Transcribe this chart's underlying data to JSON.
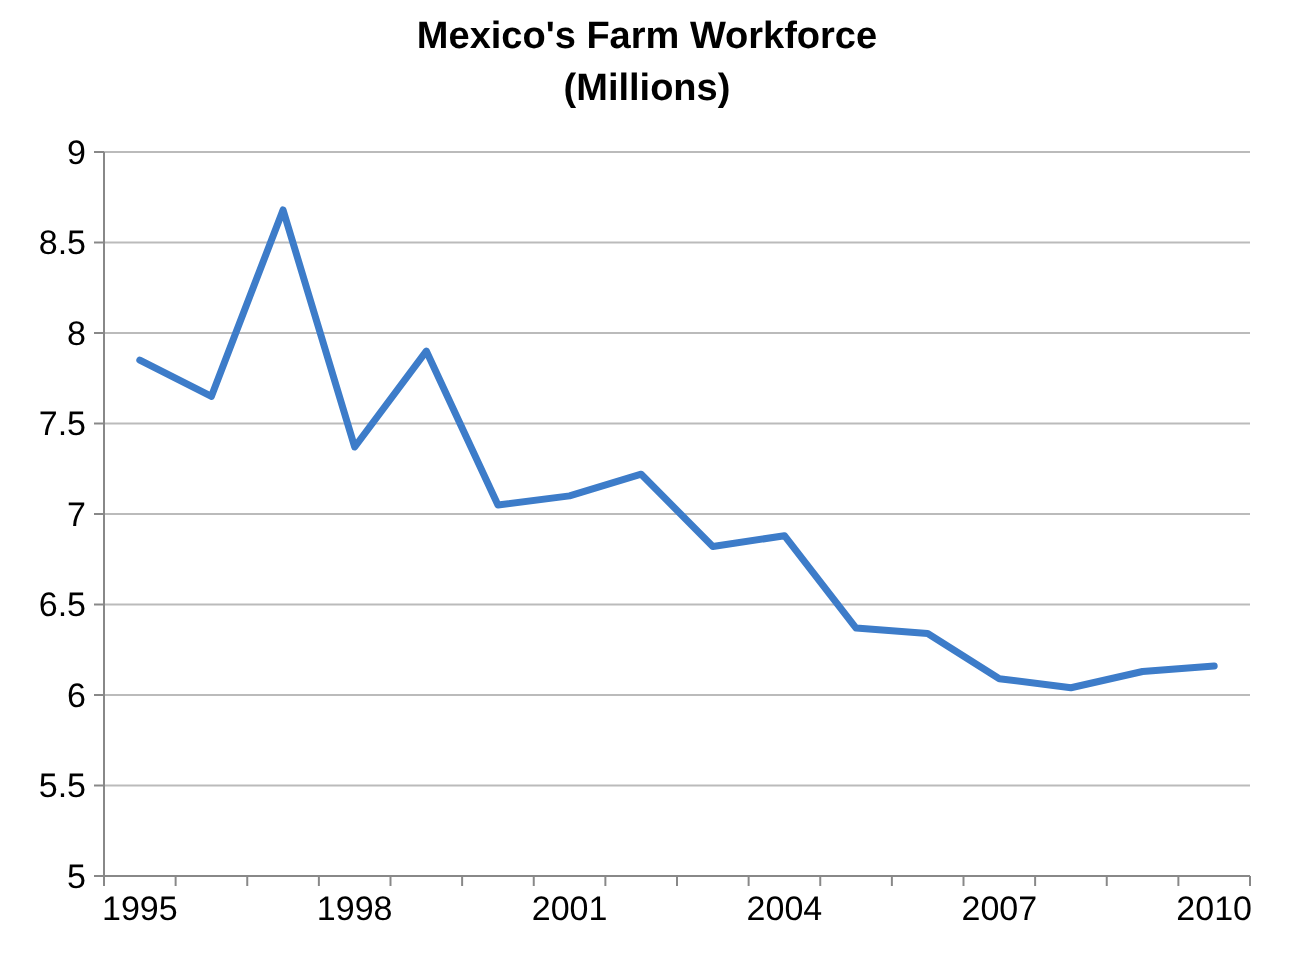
{
  "chart_data": {
    "type": "line",
    "title": "Mexico's Farm Workforce",
    "subtitle": "(Millions)",
    "categories": [
      "1995",
      null,
      null,
      "1998",
      null,
      null,
      "2001",
      null,
      null,
      "2004",
      null,
      null,
      "2007",
      null,
      null,
      "2010"
    ],
    "series": [
      {
        "color": "#3d7cc9",
        "values": [
          7.85,
          7.65,
          8.68,
          7.37,
          7.9,
          7.05,
          7.1,
          7.22,
          6.82,
          6.88,
          6.37,
          6.34,
          6.09,
          6.04,
          6.13,
          6.16
        ]
      }
    ],
    "ylim": [
      5,
      9
    ],
    "yticks": [
      5,
      5.5,
      6,
      6.5,
      7,
      7.5,
      8,
      8.5,
      9
    ],
    "grid": "y",
    "marker": "none",
    "line_style": "solid"
  }
}
